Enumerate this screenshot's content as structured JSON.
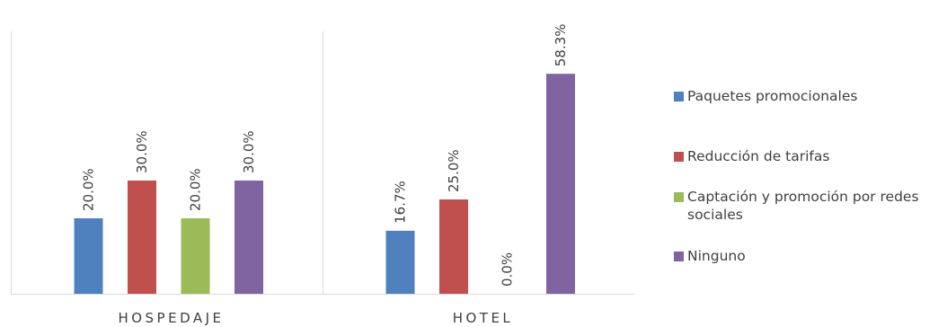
{
  "chart_data": {
    "type": "bar",
    "categories": [
      "HOSPEDAJE",
      "HOTEL"
    ],
    "series": [
      {
        "name": "Paquetes promocionales",
        "values": [
          20.0,
          16.7
        ],
        "labels": [
          "20.0%",
          "16.7%"
        ],
        "color": "#4e81bd"
      },
      {
        "name": "Reducción de tarifas",
        "values": [
          30.0,
          25.0
        ],
        "labels": [
          "30.0%",
          "25.0%"
        ],
        "color": "#c0504d"
      },
      {
        "name": "Captación y promoción por redes sociales",
        "values": [
          20.0,
          0.0
        ],
        "labels": [
          "20.0%",
          "0.0%"
        ],
        "color": "#9bbb59"
      },
      {
        "name": "Ninguno",
        "values": [
          30.0,
          58.3
        ],
        "labels": [
          "30.0%",
          "58.3%"
        ],
        "color": "#8064a2"
      }
    ],
    "ylim": [
      0,
      60
    ],
    "grid": false,
    "legend": "right"
  }
}
